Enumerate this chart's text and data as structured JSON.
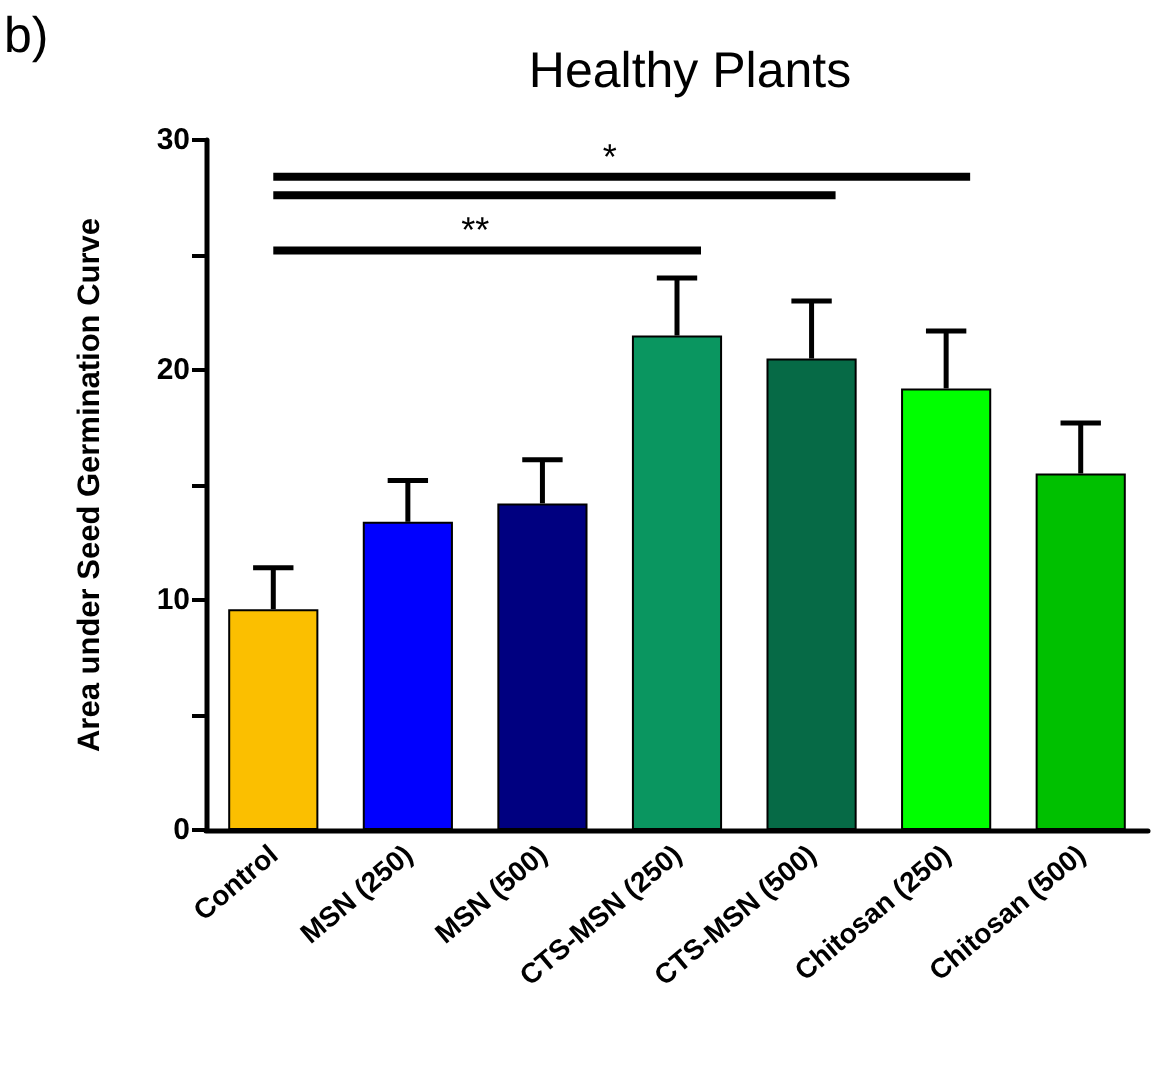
{
  "chart_data": {
    "type": "bar",
    "title": "Healthy Plants",
    "ylabel": "Area under Seed Germination Curve",
    "categories": [
      "Control",
      "MSN (250)",
      "MSN (500)",
      "CTS-MSN (250)",
      "CTS-MSN (500)",
      "Chitosan (250)",
      "Chitosan (500)"
    ],
    "values": [
      9.6,
      13.4,
      14.2,
      21.5,
      20.5,
      19.2,
      15.5
    ],
    "errors": [
      1.8,
      1.8,
      1.9,
      2.5,
      2.5,
      2.5,
      2.2
    ],
    "colors": [
      "#fbbf00",
      "#0000ff",
      "#000080",
      "#0a9660",
      "#066a46",
      "#00ff00",
      "#00c000"
    ],
    "ylim": [
      0,
      30
    ],
    "yticks": [
      0,
      {
        "value": 5,
        "label": null
      },
      10,
      {
        "value": 15,
        "label": null
      },
      20,
      {
        "value": 25,
        "label": null
      },
      30
    ],
    "annotations": [
      "b)",
      "*",
      "**"
    ],
    "grid": false
  }
}
